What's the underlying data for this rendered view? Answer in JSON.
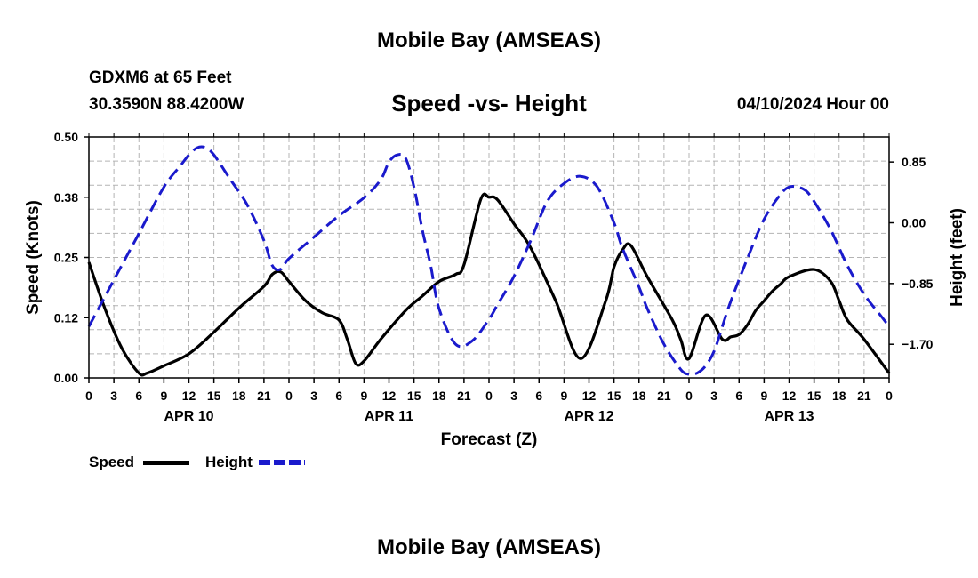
{
  "header": {
    "title_top": "Mobile Bay (AMSEAS)",
    "station": "GDXM6 at 65 Feet",
    "coords": "30.3590N  88.4200W",
    "chart_title": "Speed -vs- Height",
    "datetime": "04/10/2024 Hour 00",
    "title_bottom": "Mobile Bay (AMSEAS)"
  },
  "legend": {
    "speed_label": "Speed",
    "height_label": "Height"
  },
  "colors": {
    "speed": "#000000",
    "height": "#1a1acc",
    "grid": "#b4b4b4"
  },
  "chart_data": {
    "type": "line",
    "title": "Speed -vs- Height",
    "xlabel": "Forecast (Z)",
    "ylabel_left": "Speed (Knots)",
    "ylabel_right": "Height (feet)",
    "xlim": [
      0,
      96
    ],
    "ylim_left": [
      0,
      0.5
    ],
    "ylim_right": [
      -2.17,
      1.2
    ],
    "grid": true,
    "legend": "bottom-left",
    "x_tick_labels": [
      "0",
      "3",
      "6",
      "9",
      "12",
      "15",
      "18",
      "21",
      "0",
      "3",
      "6",
      "9",
      "12",
      "15",
      "18",
      "21",
      "0",
      "3",
      "6",
      "9",
      "12",
      "15",
      "18",
      "21",
      "0",
      "3",
      "6",
      "9",
      "12",
      "15",
      "18",
      "21",
      "0"
    ],
    "date_labels": [
      {
        "hour": 12,
        "label": "APR 10"
      },
      {
        "hour": 36,
        "label": "APR 11"
      },
      {
        "hour": 60,
        "label": "APR 12"
      },
      {
        "hour": 84,
        "label": "APR 13"
      }
    ],
    "y_left_ticks": [
      {
        "value": 0.0,
        "label": "0.00"
      },
      {
        "value": 0.125,
        "label": "0.12"
      },
      {
        "value": 0.25,
        "label": "0.25"
      },
      {
        "value": 0.375,
        "label": "0.38"
      },
      {
        "value": 0.5,
        "label": "0.50"
      }
    ],
    "y_right_ticks": [
      {
        "value": 0.85,
        "label": "0.85"
      },
      {
        "value": 0.0,
        "label": "0.00"
      },
      {
        "value": -0.85,
        "label": "−0.85"
      },
      {
        "value": -1.7,
        "label": "−1.70"
      }
    ],
    "series": [
      {
        "name": "Speed",
        "axis": "left",
        "style": "solid",
        "x": [
          0,
          2,
          4,
          6,
          7,
          9,
          12,
          15,
          18,
          21,
          22,
          23,
          24,
          26,
          28,
          30,
          31,
          32,
          33,
          35,
          38,
          40,
          42,
          44,
          45,
          47,
          48,
          49,
          51,
          53,
          56,
          59,
          62,
          63,
          64,
          65,
          67,
          70,
          71,
          72,
          74,
          76,
          77,
          78,
          79,
          80,
          81,
          82,
          83,
          84,
          87,
          89,
          90,
          91,
          93,
          96
        ],
        "values": [
          0.24,
          0.14,
          0.06,
          0.01,
          0.01,
          0.025,
          0.05,
          0.095,
          0.145,
          0.19,
          0.215,
          0.22,
          0.2,
          0.16,
          0.135,
          0.12,
          0.08,
          0.03,
          0.035,
          0.08,
          0.14,
          0.17,
          0.2,
          0.215,
          0.235,
          0.37,
          0.375,
          0.37,
          0.32,
          0.27,
          0.16,
          0.04,
          0.16,
          0.23,
          0.265,
          0.275,
          0.21,
          0.12,
          0.08,
          0.04,
          0.13,
          0.08,
          0.085,
          0.09,
          0.11,
          0.14,
          0.16,
          0.18,
          0.195,
          0.21,
          0.225,
          0.2,
          0.16,
          0.12,
          0.08,
          0.01
        ]
      },
      {
        "name": "Height",
        "axis": "right",
        "style": "dashed",
        "x": [
          0,
          3,
          6,
          9,
          11,
          12,
          13,
          14,
          15,
          17,
          19,
          21,
          22,
          23,
          24,
          27,
          30,
          33,
          35,
          36,
          37,
          38,
          39,
          40,
          41,
          42,
          44,
          46,
          48,
          49,
          51,
          53,
          55,
          57,
          59,
          61,
          63,
          64,
          66,
          67,
          69,
          71,
          72,
          73,
          74,
          75,
          76,
          77,
          79,
          81,
          83,
          84,
          85,
          86,
          87,
          89,
          91,
          93,
          95,
          96
        ],
        "values": [
          -1.45,
          -0.8,
          -0.15,
          0.5,
          0.8,
          0.95,
          1.05,
          1.05,
          0.95,
          0.6,
          0.25,
          -0.25,
          -0.6,
          -0.65,
          -0.5,
          -0.2,
          0.1,
          0.35,
          0.6,
          0.85,
          0.95,
          0.9,
          0.5,
          -0.1,
          -0.6,
          -1.2,
          -1.7,
          -1.65,
          -1.35,
          -1.15,
          -0.75,
          -0.25,
          0.3,
          0.55,
          0.65,
          0.5,
          0.0,
          -0.35,
          -0.9,
          -1.2,
          -1.7,
          -2.05,
          -2.12,
          -2.1,
          -2.0,
          -1.8,
          -1.45,
          -1.1,
          -0.5,
          0.05,
          0.4,
          0.5,
          0.5,
          0.45,
          0.3,
          -0.1,
          -0.6,
          -1.0,
          -1.3,
          -1.45
        ]
      }
    ]
  }
}
